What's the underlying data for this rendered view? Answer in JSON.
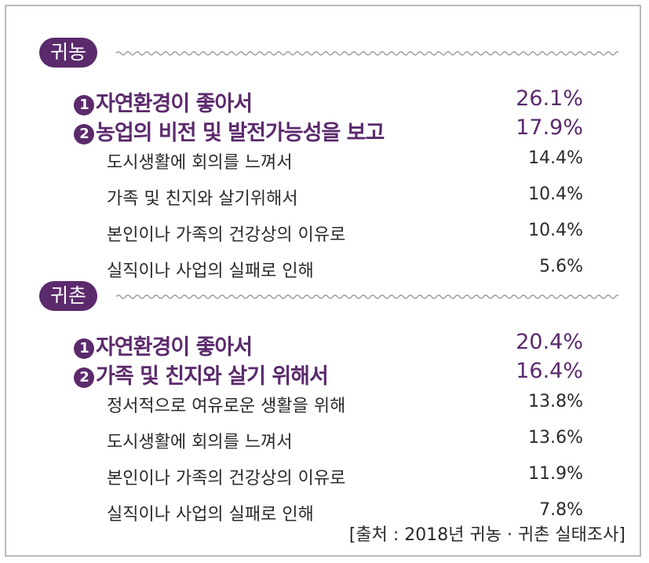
{
  "sections": [
    {
      "title": "귀농",
      "items": [
        {
          "rank": "1",
          "label": "자연환경이 좋아서",
          "value": "26.1%"
        },
        {
          "rank": "2",
          "label": "농업의 비전 및 발전가능성을 보고",
          "value": "17.9%"
        },
        {
          "label": "도시생활에 회의를 느껴서",
          "value": "14.4%"
        },
        {
          "label": "가족 및 친지와 살기위해서",
          "value": "10.4%"
        },
        {
          "label": "본인이나 가족의 건강상의 이유로",
          "value": "10.4%"
        },
        {
          "label": "실직이나 사업의 실패로 인해",
          "value": "5.6%"
        }
      ]
    },
    {
      "title": "귀촌",
      "items": [
        {
          "rank": "1",
          "label": "자연환경이 좋아서",
          "value": "20.4%"
        },
        {
          "rank": "2",
          "label": "가족 및 친지와 살기 위해서",
          "value": "16.4%"
        },
        {
          "label": "정서적으로 여유로운 생활을 위해",
          "value": "13.8%"
        },
        {
          "label": "도시생활에 회의를 느껴서",
          "value": "13.6%"
        },
        {
          "label": "본인이나 가족의 건강상의 이유로",
          "value": "11.9%"
        },
        {
          "label": "실직이나 사업의 실패로 인해",
          "value": "7.8%"
        }
      ]
    }
  ],
  "source": "[출처 : 2018년 귀농 · 귀촌 실태조사]",
  "colors": {
    "accent": "#5b2a6c",
    "text": "#2a2a2a",
    "border": "#b9b9b9",
    "wave": "#9a9a9a"
  }
}
